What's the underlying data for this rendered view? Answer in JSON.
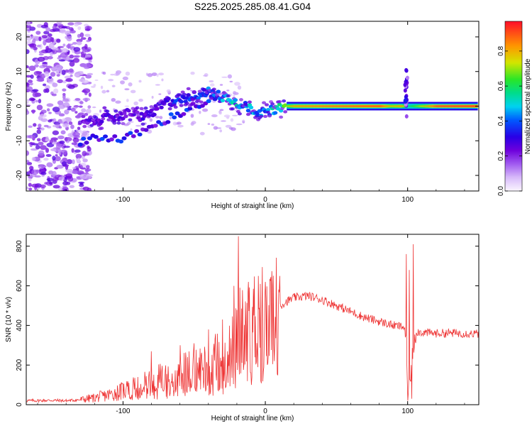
{
  "chart_data": [
    {
      "type": "heatmap",
      "title": "S225.2025.285.08.41.G04",
      "xlabel": "Height of straight line (km)",
      "ylabel": "Frequency (Hz)",
      "xlim": [
        -168,
        150
      ],
      "ylim": [
        -24.5,
        24.5
      ],
      "x_ticks": [
        -100,
        0,
        100
      ],
      "y_ticks": [
        -20,
        -10,
        0,
        10,
        20
      ],
      "colorbar": {
        "label": "Normalized spectral amplitude",
        "range": [
          0,
          0.97
        ],
        "ticks": [
          0.0,
          0.2,
          0.4,
          0.6,
          0.8
        ],
        "colormap": "rainbow (white-violet-blue-cyan-green-yellow-red)"
      },
      "ridge": {
        "description": "dominant frequency track vs height",
        "x": [
          -128,
          -118,
          -105,
          -95,
          -88,
          -80,
          -70,
          -60,
          -50,
          -40,
          -32,
          -25,
          -20,
          -15,
          -8,
          -3,
          0,
          5,
          10,
          15,
          20,
          40,
          60,
          80,
          88,
          95,
          100,
          120,
          148
        ],
        "y": [
          -5,
          -4,
          -3,
          -2,
          -3,
          -2,
          1,
          2,
          3,
          4,
          3,
          2,
          1,
          0,
          -1,
          -2,
          -2,
          -1,
          -0.5,
          0,
          0,
          0,
          0,
          0,
          0,
          0,
          0,
          0,
          0
        ],
        "amplitude": [
          0.25,
          0.3,
          0.3,
          0.25,
          0.3,
          0.35,
          0.35,
          0.4,
          0.4,
          0.45,
          0.5,
          0.55,
          0.6,
          0.5,
          0.55,
          0.5,
          0.45,
          0.55,
          0.6,
          0.75,
          0.85,
          0.9,
          0.92,
          0.95,
          0.8,
          0.85,
          0.6,
          0.95,
          0.97
        ]
      },
      "secondary_ridge": {
        "x": [
          -130,
          -120,
          -110,
          -100,
          -92,
          -85,
          -78,
          -70,
          -60,
          -50,
          -42,
          -35
        ],
        "y": [
          -10,
          -9,
          -9,
          -10,
          -8,
          -7,
          -6,
          -4,
          -2,
          0,
          1,
          2
        ]
      }
    },
    {
      "type": "line",
      "xlabel": "Height of straight line (km)",
      "ylabel": "SNR (10 * v/v)",
      "xlim": [
        -168,
        150
      ],
      "ylim": [
        0,
        860
      ],
      "x_ticks": [
        -100,
        0,
        100
      ],
      "y_ticks": [
        0,
        200,
        400,
        600,
        800
      ],
      "color": "#ee3333",
      "series": [
        {
          "name": "",
          "x": [
            -168,
            -150,
            -140,
            -130,
            -120,
            -110,
            -100,
            -90,
            -80,
            -70,
            -60,
            -50,
            -40,
            -30,
            -25,
            -20,
            -18,
            -15,
            -10,
            -5,
            0,
            5,
            10,
            15,
            20,
            25,
            30,
            40,
            50,
            60,
            70,
            80,
            90,
            95,
            98,
            100,
            101,
            102,
            104,
            106,
            110,
            120,
            130,
            140,
            150
          ],
          "y": [
            20,
            22,
            20,
            25,
            35,
            50,
            70,
            90,
            110,
            130,
            150,
            170,
            200,
            230,
            260,
            300,
            330,
            360,
            400,
            430,
            460,
            480,
            500,
            520,
            540,
            545,
            550,
            530,
            500,
            470,
            440,
            420,
            400,
            395,
            390,
            100,
            60,
            140,
            300,
            370,
            365,
            360,
            362,
            360,
            358
          ]
        }
      ],
      "spikes": {
        "x": [
          -80,
          -60,
          -50,
          -40,
          -30,
          -22,
          -19,
          -18,
          -12,
          -5,
          0,
          5,
          10,
          99,
          100,
          101,
          103,
          104
        ],
        "y": [
          270,
          300,
          310,
          380,
          430,
          600,
          850,
          590,
          620,
          650,
          620,
          600,
          650,
          760,
          20,
          680,
          30,
          810
        ]
      }
    }
  ]
}
